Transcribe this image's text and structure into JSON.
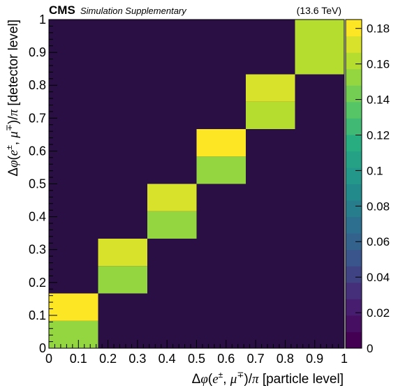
{
  "header": {
    "experiment": "CMS",
    "subtitle": "Simulation Supplementary",
    "energy": "(13.6 TeV)"
  },
  "chart_data": {
    "type": "heatmap",
    "xlabel": "Δφ(e±, μ∓)/π [particle level]",
    "ylabel": "Δφ(e±, μ∓)/π [detector level]",
    "xlabel_parts": {
      "pre": "Δ",
      "phi": "φ",
      "open": "(",
      "e": "e",
      "pm": "±",
      "sep": ", ",
      "mu": "μ",
      "mp": "∓",
      "close": ")/",
      "pi": "π",
      "post": " [particle level]"
    },
    "ylabel_parts": {
      "pre": "Δ",
      "phi": "φ",
      "open": "(",
      "e": "e",
      "pm": "±",
      "sep": ", ",
      "mu": "μ",
      "mp": "∓",
      "close": ")/",
      "pi": "π",
      "post": " [detector level]"
    },
    "xlim": [
      0,
      1
    ],
    "ylim": [
      0,
      1
    ],
    "x_ticks": [
      "0",
      "0.1",
      "0.2",
      "0.3",
      "0.4",
      "0.5",
      "0.6",
      "0.7",
      "0.8",
      "0.9",
      "1"
    ],
    "y_ticks": [
      "0",
      "0.1",
      "0.2",
      "0.3",
      "0.4",
      "0.5",
      "0.6",
      "0.7",
      "0.8",
      "0.9",
      "1"
    ],
    "x_bin_edges": [
      0,
      0.1667,
      0.3333,
      0.5,
      0.6667,
      0.8333,
      1
    ],
    "y_bin_edges": [
      0,
      0.0833,
      0.1667,
      0.25,
      0.3333,
      0.4167,
      0.5,
      0.5833,
      0.6667,
      0.75,
      0.8333,
      1
    ],
    "cells": [
      {
        "x": [
          0,
          0.1667
        ],
        "y": [
          0,
          0.0833
        ],
        "value": 0.153
      },
      {
        "x": [
          0,
          0.1667
        ],
        "y": [
          0.0833,
          0.1667
        ],
        "value": 0.183
      },
      {
        "x": [
          0.1667,
          0.3333
        ],
        "y": [
          0.1667,
          0.25
        ],
        "value": 0.157
      },
      {
        "x": [
          0.1667,
          0.3333
        ],
        "y": [
          0.25,
          0.3333
        ],
        "value": 0.174
      },
      {
        "x": [
          0.3333,
          0.5
        ],
        "y": [
          0.3333,
          0.4167
        ],
        "value": 0.157
      },
      {
        "x": [
          0.3333,
          0.5
        ],
        "y": [
          0.4167,
          0.5
        ],
        "value": 0.174
      },
      {
        "x": [
          0.5,
          0.6667
        ],
        "y": [
          0.5,
          0.5833
        ],
        "value": 0.157
      },
      {
        "x": [
          0.5,
          0.6667
        ],
        "y": [
          0.5833,
          0.6667
        ],
        "value": 0.183
      },
      {
        "x": [
          0.6667,
          0.8333
        ],
        "y": [
          0.6667,
          0.75
        ],
        "value": 0.161
      },
      {
        "x": [
          0.6667,
          0.8333
        ],
        "y": [
          0.75,
          0.8333
        ],
        "value": 0.17
      },
      {
        "x": [
          0.8333,
          1
        ],
        "y": [
          0.8333,
          1
        ],
        "value": 0.165
      }
    ],
    "background_value": 0,
    "colorbar": {
      "range": [
        0,
        0.185
      ],
      "ticks": [
        0,
        0.02,
        0.04,
        0.06,
        0.08,
        0.1,
        0.12,
        0.14,
        0.16,
        0.18
      ],
      "tick_labels": [
        "0",
        "0.02",
        "0.04",
        "0.06",
        "0.08",
        "0.1",
        "0.12",
        "0.14",
        "0.16",
        "0.18"
      ],
      "palette": "viridis",
      "n_levels": 20
    }
  }
}
